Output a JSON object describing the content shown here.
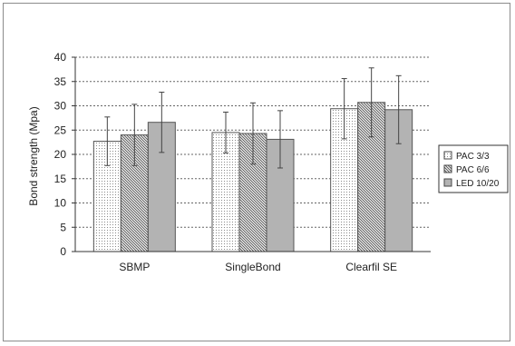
{
  "chart_data": {
    "type": "bar",
    "title": "",
    "xlabel": "",
    "ylabel": "Bond strength (Mpa)",
    "ylim": [
      0,
      40
    ],
    "yticks": [
      0,
      5,
      10,
      15,
      20,
      25,
      30,
      35,
      40
    ],
    "grid": true,
    "legend_position": "right",
    "categories": [
      "SBMP",
      "SingleBond",
      "Clearfil SE"
    ],
    "series": [
      {
        "name": "PAC 3/3",
        "pattern": "dots",
        "values": [
          22.7,
          24.5,
          29.4
        ],
        "error": [
          5.0,
          4.2,
          6.2
        ]
      },
      {
        "name": "PAC 6/6",
        "pattern": "diagonal",
        "values": [
          24.0,
          24.3,
          30.7
        ],
        "error": [
          6.3,
          6.3,
          7.1
        ]
      },
      {
        "name": "LED 10/20",
        "pattern": "solid",
        "values": [
          26.6,
          23.1,
          29.2
        ],
        "error": [
          6.2,
          5.9,
          7.0
        ]
      }
    ],
    "colors": {
      "solid": "#b3b3b3",
      "line": "#555555",
      "grid": "#666666"
    }
  }
}
